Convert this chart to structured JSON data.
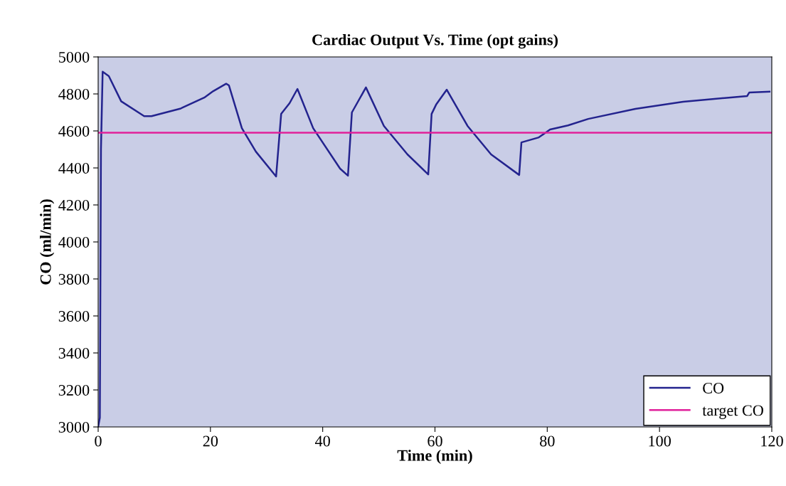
{
  "chart_data": {
    "type": "line",
    "title": "Cardiac Output Vs. Time (opt gains)",
    "xlabel": "Time (min)",
    "ylabel": "CO (ml/min)",
    "xlim": [
      0,
      120
    ],
    "xticks": [
      0,
      20,
      40,
      60,
      80,
      100,
      120
    ],
    "ylim": [
      3000,
      5000
    ],
    "yticks": [
      3000,
      3200,
      3400,
      3600,
      3800,
      4000,
      4200,
      4400,
      4600,
      4800,
      5000
    ],
    "grid": false,
    "legend": "bottom right",
    "series": [
      {
        "name": "CO",
        "color": "#23238e",
        "x": [
          0,
          0.3,
          0.5,
          0.8,
          1.9,
          4.1,
          8.2,
          9.5,
          14.6,
          18.9,
          20.5,
          22.8,
          23.3,
          25.6,
          28.1,
          31.7,
          32.6,
          34.1,
          35.5,
          38.3,
          43.1,
          44.5,
          45.2,
          47.7,
          50.9,
          55.1,
          58.8,
          59.4,
          60.2,
          62.1,
          65.8,
          70.0,
          75.0,
          75.4,
          78.5,
          80.5,
          83.7,
          87.3,
          95.7,
          104.2,
          112.7,
          115.6,
          116,
          119.6
        ],
        "values": [
          3000,
          3050,
          4500,
          4920,
          4896,
          4760,
          4680,
          4680,
          4720,
          4780,
          4815,
          4855,
          4846,
          4615,
          4488,
          4354,
          4692,
          4750,
          4827,
          4615,
          4396,
          4358,
          4700,
          4835,
          4627,
          4473,
          4365,
          4692,
          4742,
          4823,
          4627,
          4473,
          4362,
          4538,
          4565,
          4608,
          4630,
          4665,
          4719,
          4758,
          4781,
          4788,
          4808,
          4812
        ]
      },
      {
        "name": "target CO",
        "color": "#e0209a",
        "x": [
          0,
          120
        ],
        "values": [
          4590,
          4590
        ]
      }
    ]
  }
}
